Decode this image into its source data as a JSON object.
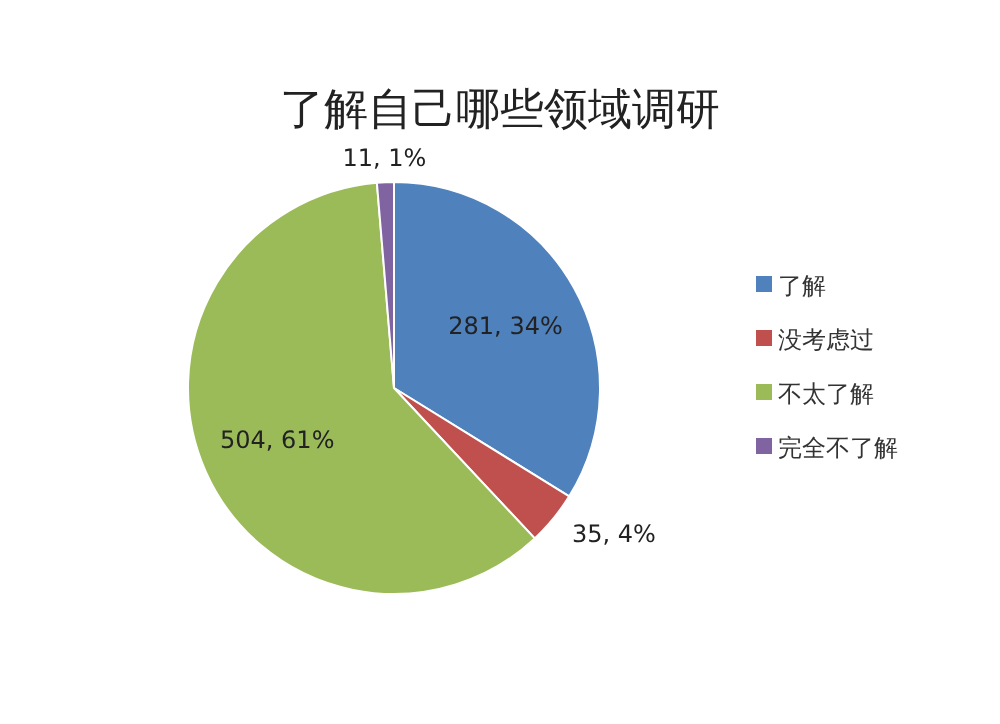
{
  "chart_data": {
    "type": "pie",
    "title": "了解自己哪些领域调研",
    "categories": [
      "了解",
      "没考虑过",
      "不太了解",
      "完全不了解"
    ],
    "values": [
      281,
      35,
      504,
      11
    ],
    "colors": [
      "#4f81bd",
      "#c0504d",
      "#9bbb59",
      "#8064a2"
    ],
    "value_labels": [
      "281, 34%",
      "35, 4%",
      "504, 61%",
      "11, 1%"
    ],
    "legend": "right"
  }
}
